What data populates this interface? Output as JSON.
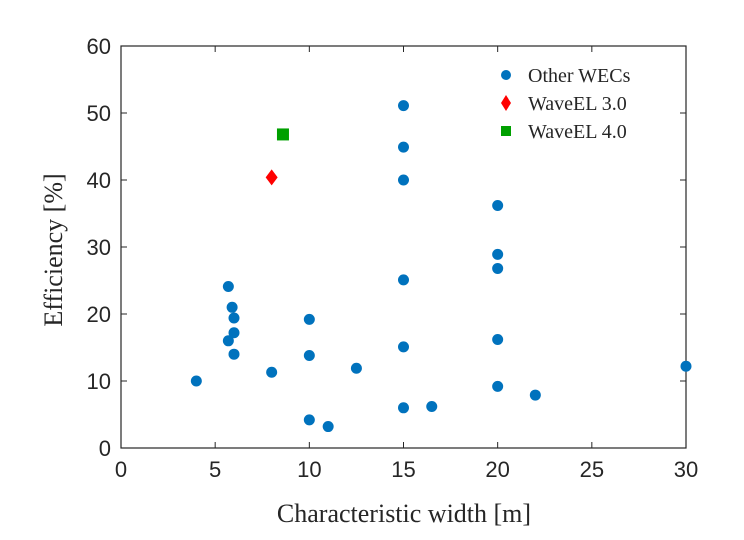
{
  "chart_data": {
    "type": "scatter",
    "title": "",
    "xlabel": "Characteristic width [m]",
    "ylabel": "Efficiency [%]",
    "xlim": [
      0,
      30
    ],
    "ylim": [
      0,
      60
    ],
    "xticks": [
      "0",
      "5",
      "10",
      "15",
      "20",
      "25",
      "30"
    ],
    "yticks": [
      "0",
      "10",
      "20",
      "30",
      "40",
      "50",
      "60"
    ],
    "grid": false,
    "legend_position": "top-right",
    "series": [
      {
        "name": "Other WECs",
        "marker": "circle",
        "color": "#0072BD",
        "points": [
          [
            4,
            10
          ],
          [
            5.7,
            24.1
          ],
          [
            5.7,
            16
          ],
          [
            5.9,
            21
          ],
          [
            6,
            19.4
          ],
          [
            6,
            17.2
          ],
          [
            6,
            14
          ],
          [
            8,
            11.3
          ],
          [
            10,
            19.2
          ],
          [
            10,
            13.8
          ],
          [
            10,
            4.2
          ],
          [
            11,
            3.2
          ],
          [
            12.5,
            11.9
          ],
          [
            15,
            51.1
          ],
          [
            15,
            44.9
          ],
          [
            15,
            40
          ],
          [
            15,
            25.1
          ],
          [
            15,
            15.1
          ],
          [
            15,
            6
          ],
          [
            16.5,
            6.2
          ],
          [
            20,
            36.2
          ],
          [
            20,
            28.9
          ],
          [
            20,
            26.8
          ],
          [
            20,
            16.2
          ],
          [
            20,
            9.2
          ],
          [
            22,
            7.9
          ],
          [
            30,
            12.2
          ]
        ]
      },
      {
        "name": "WaveEL 3.0",
        "marker": "diamond",
        "color": "#FF0000",
        "points": [
          [
            8,
            40.4
          ]
        ]
      },
      {
        "name": "WaveEL 4.0",
        "marker": "square",
        "color": "#00A000",
        "points": [
          [
            8.6,
            46.8
          ]
        ]
      }
    ]
  }
}
